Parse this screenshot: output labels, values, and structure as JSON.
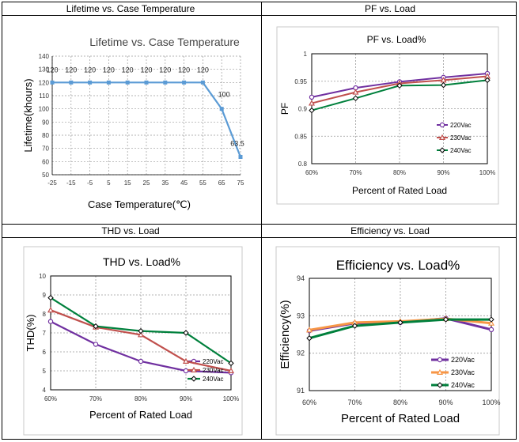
{
  "titles": {
    "lifetime": "Lifetime vs. Case Temperature",
    "pf": "PF vs. Load",
    "thd": "THD vs. Load",
    "eff": "Efficiency vs. Load"
  },
  "chart_data": [
    {
      "id": "lifetime",
      "type": "line",
      "title": "Lifetime vs. Case Temperature",
      "xlabel": "Case Temperature(℃)",
      "ylabel": "Lifetime(khours)",
      "x": [
        -25,
        -15,
        -5,
        5,
        15,
        25,
        35,
        45,
        55,
        65,
        75
      ],
      "xlim": [
        -25,
        75
      ],
      "ylim": [
        50,
        140
      ],
      "yticks": [
        50,
        60,
        70,
        80,
        90,
        100,
        110,
        120,
        130,
        140
      ],
      "series": [
        {
          "name": "Lifetime",
          "color": "#5b9bd5",
          "values": [
            120,
            120,
            120,
            120,
            120,
            120,
            120,
            120,
            120,
            100,
            63.5
          ],
          "labels": [
            "120",
            "120",
            "120",
            "120",
            "120",
            "120",
            "120",
            "120",
            "120",
            "100",
            "63.5"
          ]
        }
      ]
    },
    {
      "id": "pf",
      "type": "line",
      "title": "PF vs. Load%",
      "xlabel": "Percent of Rated Load",
      "ylabel": "PF",
      "categories": [
        "60%",
        "70%",
        "80%",
        "90%",
        "100%"
      ],
      "ylim": [
        0.8,
        1
      ],
      "yticks": [
        "0.8",
        "0.85",
        "0.9",
        "0.95",
        "1"
      ],
      "legend": "bottom-right",
      "series": [
        {
          "name": "220Vac",
          "color": "#7030a0",
          "marker": "circle",
          "values": [
            0.921,
            0.938,
            0.949,
            0.957,
            0.964
          ]
        },
        {
          "name": "230Vac",
          "color": "#c0504d",
          "marker": "triangle",
          "values": [
            0.91,
            0.93,
            0.946,
            0.952,
            0.959
          ]
        },
        {
          "name": "240Vac",
          "color": "#00803c",
          "marker": "diamond",
          "values": [
            0.897,
            0.919,
            0.942,
            0.943,
            0.952
          ]
        }
      ]
    },
    {
      "id": "thd",
      "type": "line",
      "title": "THD vs. Load%",
      "xlabel": "Percent of Rated Load",
      "ylabel": "THD(%)",
      "categories": [
        "60%",
        "70%",
        "80%",
        "90%",
        "100%"
      ],
      "ylim": [
        4,
        10
      ],
      "yticks": [
        "4",
        "5",
        "6",
        "7",
        "8",
        "9",
        "10"
      ],
      "legend": "bottom-right",
      "series": [
        {
          "name": "220Vac",
          "color": "#7030a0",
          "marker": "circle",
          "values": [
            7.6,
            6.4,
            5.5,
            5.0,
            4.9
          ]
        },
        {
          "name": "230Vac",
          "color": "#c0504d",
          "marker": "triangle",
          "values": [
            8.2,
            7.3,
            6.9,
            5.5,
            5.0
          ]
        },
        {
          "name": "240Vac",
          "color": "#00803c",
          "marker": "diamond",
          "values": [
            8.85,
            7.35,
            7.1,
            7.0,
            5.4
          ]
        }
      ]
    },
    {
      "id": "eff",
      "type": "line",
      "title": "Efficiency vs. Load%",
      "xlabel": "Percent of Rated Load",
      "ylabel": "Efficiency(%)",
      "categories": [
        "60%",
        "70%",
        "80%",
        "90%",
        "100%"
      ],
      "ylim": [
        91,
        94
      ],
      "yticks": [
        "91",
        "92",
        "93",
        "94"
      ],
      "legend": "bottom-right",
      "series": [
        {
          "name": "220Vac",
          "color": "#7030a0",
          "marker": "circle",
          "values": [
            92.6,
            92.8,
            92.82,
            92.93,
            92.63
          ]
        },
        {
          "name": "230Vac",
          "color": "#f79646",
          "marker": "triangle",
          "values": [
            92.62,
            92.82,
            92.85,
            92.92,
            92.8
          ]
        },
        {
          "name": "240Vac",
          "color": "#00803c",
          "marker": "diamond",
          "values": [
            92.4,
            92.73,
            92.82,
            92.9,
            92.9
          ]
        }
      ]
    }
  ]
}
